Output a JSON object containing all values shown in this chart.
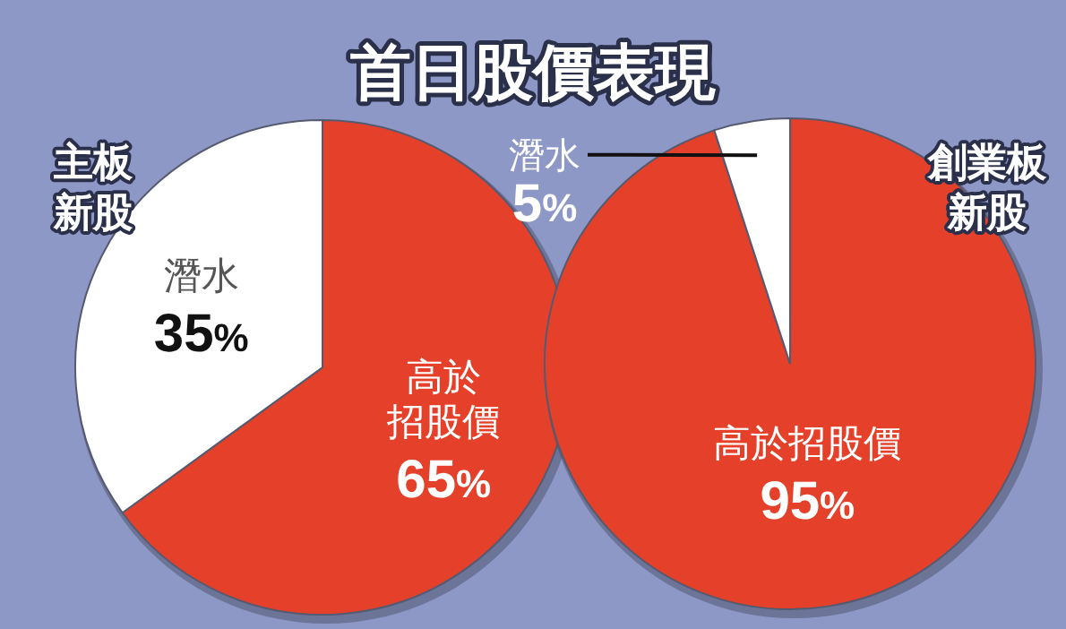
{
  "chart_data": [
    {
      "type": "pie",
      "title": "首日股價表現",
      "subtitle": "主板新股",
      "categories": [
        "高於招股價",
        "潛水"
      ],
      "values": [
        65,
        35
      ],
      "colors": [
        "#e5402a",
        "#ffffff"
      ],
      "value_labels": [
        "65%",
        "35%"
      ]
    },
    {
      "type": "pie",
      "subtitle": "創業板新股",
      "categories": [
        "高於招股價",
        "潛水"
      ],
      "values": [
        95,
        5
      ],
      "colors": [
        "#e5402a",
        "#ffffff"
      ],
      "value_labels": [
        "95%",
        "5%"
      ]
    }
  ]
}
